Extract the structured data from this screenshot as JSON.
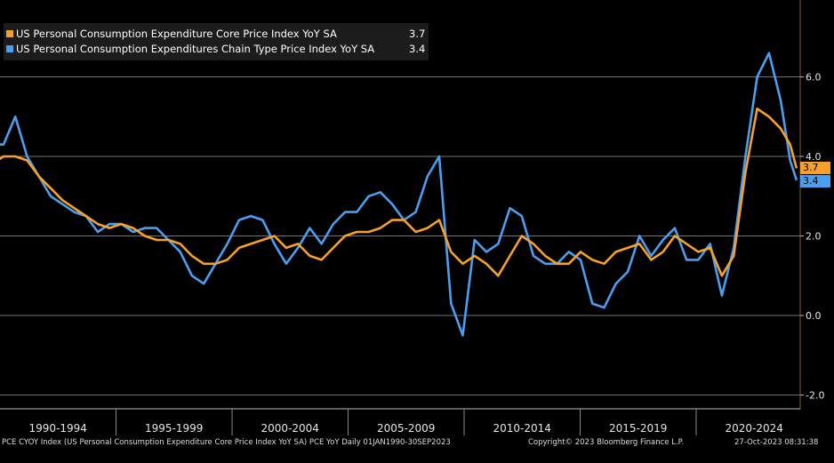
{
  "chart_data": {
    "type": "line",
    "x_start": 1990,
    "x_end": 2023.75,
    "ylim": [
      -2.0,
      7.5
    ],
    "y_ticks": [
      "6.0",
      "4.0",
      "2.0",
      "0.0",
      "-2.0"
    ],
    "y_tick_values": [
      6.0,
      4.0,
      2.0,
      0.0,
      -2.0
    ],
    "x_periods": [
      "1990-1994",
      "1995-1999",
      "2000-2004",
      "2005-2009",
      "2010-2014",
      "2015-2019",
      "2020-2024"
    ],
    "series": [
      {
        "name": "US Personal Consumption Expenditure Core Price Index YoY SA",
        "last": "3.7",
        "color": "#f7a12a",
        "points": [
          [
            1989.5,
            3.8
          ],
          [
            1990.0,
            4.0
          ],
          [
            1990.5,
            4.0
          ],
          [
            1991.0,
            3.9
          ],
          [
            1991.5,
            3.5
          ],
          [
            1992.0,
            3.2
          ],
          [
            1992.5,
            2.9
          ],
          [
            1993.0,
            2.7
          ],
          [
            1993.5,
            2.5
          ],
          [
            1994.0,
            2.3
          ],
          [
            1994.5,
            2.2
          ],
          [
            1995.0,
            2.3
          ],
          [
            1995.5,
            2.2
          ],
          [
            1996.0,
            2.0
          ],
          [
            1996.5,
            1.9
          ],
          [
            1997.0,
            1.9
          ],
          [
            1997.5,
            1.8
          ],
          [
            1998.0,
            1.5
          ],
          [
            1998.5,
            1.3
          ],
          [
            1999.0,
            1.3
          ],
          [
            1999.5,
            1.4
          ],
          [
            2000.0,
            1.7
          ],
          [
            2000.5,
            1.8
          ],
          [
            2001.0,
            1.9
          ],
          [
            2001.5,
            2.0
          ],
          [
            2002.0,
            1.7
          ],
          [
            2002.5,
            1.8
          ],
          [
            2003.0,
            1.5
          ],
          [
            2003.5,
            1.4
          ],
          [
            2004.0,
            1.7
          ],
          [
            2004.5,
            2.0
          ],
          [
            2005.0,
            2.1
          ],
          [
            2005.5,
            2.1
          ],
          [
            2006.0,
            2.2
          ],
          [
            2006.5,
            2.4
          ],
          [
            2007.0,
            2.4
          ],
          [
            2007.5,
            2.1
          ],
          [
            2008.0,
            2.2
          ],
          [
            2008.5,
            2.4
          ],
          [
            2009.0,
            1.6
          ],
          [
            2009.5,
            1.3
          ],
          [
            2010.0,
            1.5
          ],
          [
            2010.5,
            1.3
          ],
          [
            2011.0,
            1.0
          ],
          [
            2011.5,
            1.5
          ],
          [
            2012.0,
            2.0
          ],
          [
            2012.5,
            1.8
          ],
          [
            2013.0,
            1.5
          ],
          [
            2013.5,
            1.3
          ],
          [
            2014.0,
            1.3
          ],
          [
            2014.5,
            1.6
          ],
          [
            2015.0,
            1.4
          ],
          [
            2015.5,
            1.3
          ],
          [
            2016.0,
            1.6
          ],
          [
            2016.5,
            1.7
          ],
          [
            2017.0,
            1.8
          ],
          [
            2017.5,
            1.4
          ],
          [
            2018.0,
            1.6
          ],
          [
            2018.5,
            2.0
          ],
          [
            2019.0,
            1.8
          ],
          [
            2019.5,
            1.6
          ],
          [
            2020.0,
            1.7
          ],
          [
            2020.5,
            1.0
          ],
          [
            2021.0,
            1.5
          ],
          [
            2021.5,
            3.6
          ],
          [
            2022.0,
            5.2
          ],
          [
            2022.5,
            5.0
          ],
          [
            2023.0,
            4.7
          ],
          [
            2023.4,
            4.3
          ],
          [
            2023.67,
            3.7
          ]
        ]
      },
      {
        "name": "US Personal Consumption Expenditures Chain Type Price Index YoY SA",
        "last": "3.4",
        "color": "#4a9ff0",
        "points": [
          [
            1989.5,
            4.3
          ],
          [
            1990.0,
            4.3
          ],
          [
            1990.5,
            5.0
          ],
          [
            1991.0,
            4.0
          ],
          [
            1991.5,
            3.5
          ],
          [
            1992.0,
            3.0
          ],
          [
            1992.5,
            2.8
          ],
          [
            1993.0,
            2.6
          ],
          [
            1993.5,
            2.5
          ],
          [
            1994.0,
            2.1
          ],
          [
            1994.5,
            2.3
          ],
          [
            1995.0,
            2.3
          ],
          [
            1995.5,
            2.1
          ],
          [
            1996.0,
            2.2
          ],
          [
            1996.5,
            2.2
          ],
          [
            1997.0,
            1.9
          ],
          [
            1997.5,
            1.6
          ],
          [
            1998.0,
            1.0
          ],
          [
            1998.5,
            0.8
          ],
          [
            1999.0,
            1.3
          ],
          [
            1999.5,
            1.8
          ],
          [
            2000.0,
            2.4
          ],
          [
            2000.5,
            2.5
          ],
          [
            2001.0,
            2.4
          ],
          [
            2001.5,
            1.8
          ],
          [
            2002.0,
            1.3
          ],
          [
            2002.5,
            1.7
          ],
          [
            2003.0,
            2.2
          ],
          [
            2003.5,
            1.8
          ],
          [
            2004.0,
            2.3
          ],
          [
            2004.5,
            2.6
          ],
          [
            2005.0,
            2.6
          ],
          [
            2005.5,
            3.0
          ],
          [
            2006.0,
            3.1
          ],
          [
            2006.5,
            2.8
          ],
          [
            2007.0,
            2.4
          ],
          [
            2007.5,
            2.6
          ],
          [
            2008.0,
            3.5
          ],
          [
            2008.5,
            4.0
          ],
          [
            2009.0,
            0.3
          ],
          [
            2009.5,
            -0.5
          ],
          [
            2010.0,
            1.9
          ],
          [
            2010.5,
            1.6
          ],
          [
            2011.0,
            1.8
          ],
          [
            2011.5,
            2.7
          ],
          [
            2012.0,
            2.5
          ],
          [
            2012.5,
            1.5
          ],
          [
            2013.0,
            1.3
          ],
          [
            2013.5,
            1.3
          ],
          [
            2014.0,
            1.6
          ],
          [
            2014.5,
            1.4
          ],
          [
            2015.0,
            0.3
          ],
          [
            2015.5,
            0.2
          ],
          [
            2016.0,
            0.8
          ],
          [
            2016.5,
            1.1
          ],
          [
            2017.0,
            2.0
          ],
          [
            2017.5,
            1.5
          ],
          [
            2018.0,
            1.9
          ],
          [
            2018.5,
            2.2
          ],
          [
            2019.0,
            1.4
          ],
          [
            2019.5,
            1.4
          ],
          [
            2020.0,
            1.8
          ],
          [
            2020.5,
            0.5
          ],
          [
            2021.0,
            1.7
          ],
          [
            2021.5,
            4.0
          ],
          [
            2022.0,
            6.0
          ],
          [
            2022.5,
            6.6
          ],
          [
            2023.0,
            5.4
          ],
          [
            2023.4,
            3.9
          ],
          [
            2023.67,
            3.4
          ]
        ]
      }
    ]
  },
  "footer": {
    "left": "PCE CYOY Index (US Personal Consumption Expenditure Core Price Index YoY SA) PCE YoY  Daily 01JAN1990-30SEP2023",
    "center": "Copyright© 2023 Bloomberg Finance L.P.",
    "right": "27-Oct-2023 08:31:38"
  }
}
